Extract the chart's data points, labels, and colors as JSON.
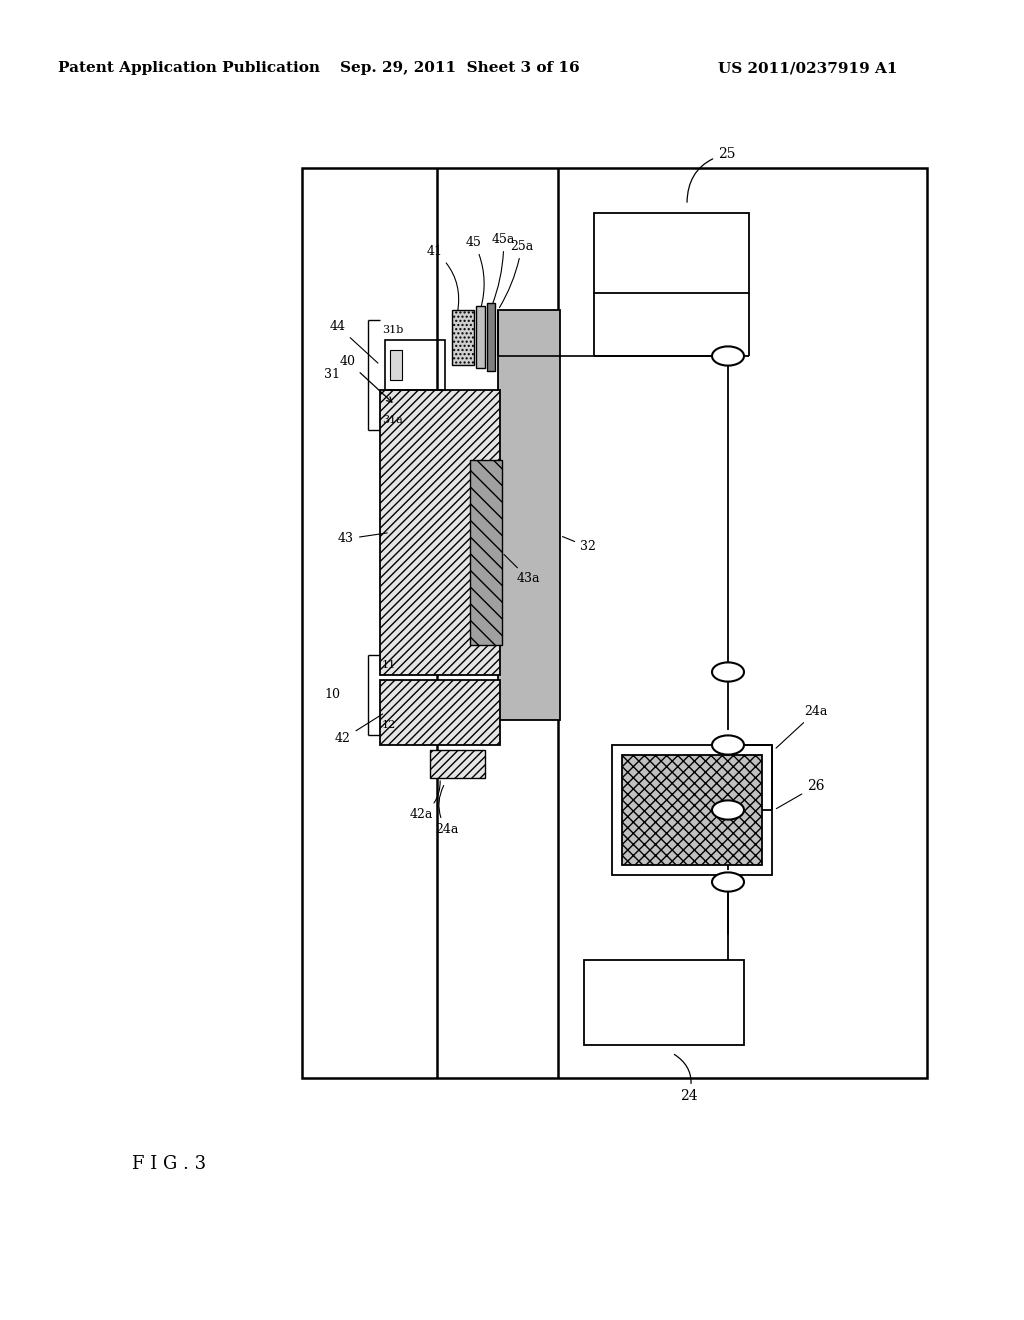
{
  "bg_color": "#ffffff",
  "header_left": "Patent Application Publication",
  "header_center": "Sep. 29, 2011  Sheet 3 of 16",
  "header_right": "US 2011/0237919 A1",
  "figure_label": "F I G . 3"
}
